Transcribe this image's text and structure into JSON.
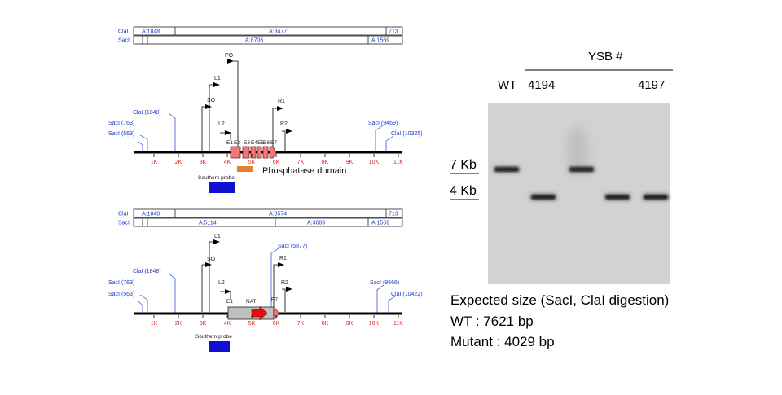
{
  "top_map": {
    "clai_row": {
      "label": "ClaI",
      "segments": [
        "A:1848",
        "A:8477",
        "713"
      ]
    },
    "saci_row": {
      "label": "SacI",
      "segments": [
        "",
        "A:8706",
        "A:1569"
      ]
    },
    "markers": {
      "po": "PO",
      "l1": "L1",
      "so": "SO",
      "l2": "L2",
      "r1": "R1",
      "r2": "R2"
    },
    "sites": {
      "clai1": "ClaI (1848)",
      "saci1": "SacI (763)",
      "saci2": "SacI (563)",
      "saci3": "SacI (9469)",
      "clai2": "ClaI (10325)"
    },
    "exons": [
      "E1",
      "E2",
      "E3",
      "E4",
      "E5",
      "E6",
      "E7"
    ],
    "ticks": [
      "1K",
      "2K",
      "3K",
      "4K",
      "5K",
      "6K",
      "7K",
      "8K",
      "9K",
      "10K",
      "11K"
    ],
    "phosphatase_label": "Phosphatase domain",
    "probe_label": "Southern probe"
  },
  "bottom_map": {
    "clai_row": {
      "label": "ClaI",
      "segments": [
        "A:1848",
        "A:8574",
        "713"
      ]
    },
    "saci_row": {
      "label": "SacI",
      "segments": [
        "",
        "A:5114",
        "A:3689",
        "A:1569"
      ]
    },
    "markers": {
      "l1": "L1",
      "so": "SO",
      "l2": "L2",
      "r1": "R1",
      "r2": "R2"
    },
    "sites": {
      "clai1": "ClaI (1848)",
      "saci1": "SacI (763)",
      "saci2": "SacI (563)",
      "saci_new": "SacI (5877)",
      "saci3": "SacI (9566)",
      "clai2": "ClaI (10422)"
    },
    "e1": "E1",
    "e7": "E7",
    "nat_label": "NAT",
    "ticks": [
      "1K",
      "2K",
      "3K",
      "4K",
      "5K",
      "6K",
      "7K",
      "8K",
      "9K",
      "10K",
      "11K"
    ],
    "probe_label": "Southern probe"
  },
  "blot": {
    "group_label": "YSB #",
    "wt_label": "WT",
    "first_label": "4194",
    "last_label": "4197",
    "marker_7kb": "7 Kb",
    "marker_4kb": "4 Kb",
    "lanes": [
      {
        "band": "7 Kb"
      },
      {
        "band": "4 Kb"
      },
      {
        "band": "7 Kb"
      },
      {
        "band": "4 Kb"
      },
      {
        "band": "4 Kb"
      }
    ]
  },
  "caption": {
    "line1": "Expected size (SacI, ClaI digestion)",
    "line2": "WT : 7621 bp",
    "line3": "Mutant : 4029 bp"
  },
  "colors": {
    "site_label": "#1e3ac8",
    "tick_label": "#e02020",
    "exon_fill": "#f07878",
    "phosphatase_bar": "#e8802a",
    "probe": "#1010d0",
    "nat_cassette": "#c0c0c0",
    "nat_arrow": "#e01010",
    "gel_background": "#d4d4d4",
    "band": "#1a1a1a"
  }
}
